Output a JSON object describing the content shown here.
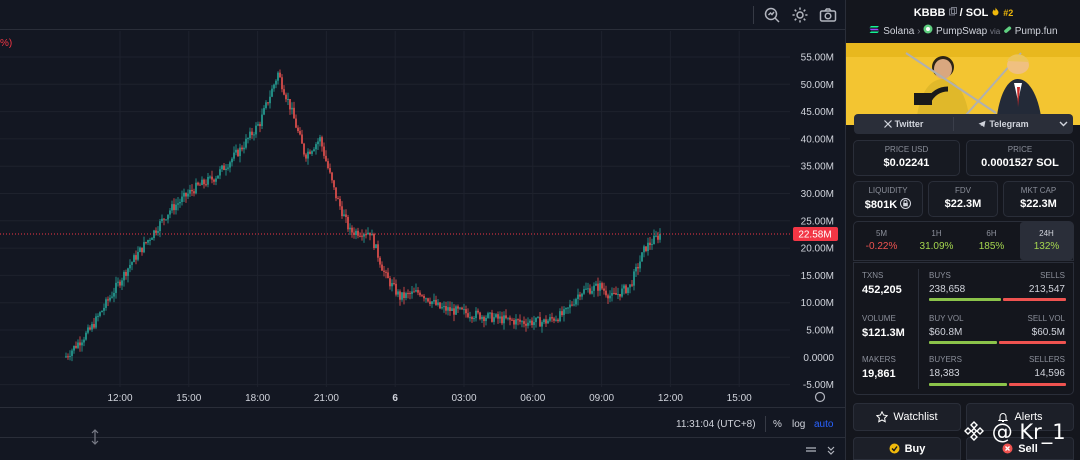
{
  "chart": {
    "pct_label": "%)",
    "current_price": "22.58M",
    "price_ticks": [
      "55.00M",
      "50.00M",
      "45.00M",
      "40.00M",
      "35.00M",
      "30.00M",
      "25.00M",
      "20.00M",
      "15.00M",
      "10.00M",
      "5.00M",
      "0.0000",
      "-5.00M"
    ],
    "time_ticks": [
      "12:00",
      "15:00",
      "18:00",
      "21:00",
      "6",
      "03:00",
      "06:00",
      "09:00",
      "12:00",
      "15:00"
    ],
    "colors": {
      "up": "#26a69a",
      "down": "#ef5350",
      "last": "#f23645"
    }
  },
  "toolbar": {
    "icons": [
      "search-chart-icon",
      "gear-icon",
      "camera-icon"
    ]
  },
  "bottom_bar": {
    "time": "11:31:04 (UTC+8)",
    "percent": "%",
    "log": "log",
    "auto": "auto"
  },
  "token": {
    "symbol": "KBBB",
    "separator": "/",
    "quote": "SOL",
    "rank": "#2",
    "chain": "Solana",
    "dex": "PumpSwap",
    "via": "via",
    "launchpad": "Pump.fun"
  },
  "social": {
    "twitter": "Twitter",
    "telegram": "Telegram"
  },
  "prices": {
    "usd_label": "PRICE USD",
    "usd_value": "$0.02241",
    "sol_label": "PRICE",
    "sol_value": "0.0001527 SOL"
  },
  "metrics": {
    "liquidity_label": "LIQUIDITY",
    "liquidity_value": "$801K",
    "fdv_label": "FDV",
    "fdv_value": "$22.3M",
    "mcap_label": "MKT CAP",
    "mcap_value": "$22.3M"
  },
  "timeframes": [
    {
      "label": "5M",
      "value": "-0.22%"
    },
    {
      "label": "1H",
      "value": "31.09%"
    },
    {
      "label": "6H",
      "value": "185%"
    },
    {
      "label": "24H",
      "value": "132%"
    }
  ],
  "stats": {
    "txns_label": "TXNS",
    "txns_value": "452,205",
    "buys_label": "BUYS",
    "buys_value": "238,658",
    "sells_label": "SELLS",
    "sells_value": "213,547",
    "volume_label": "VOLUME",
    "volume_value": "$121.3M",
    "buyvol_label": "BUY VOL",
    "buyvol_value": "$60.8M",
    "sellvol_label": "SELL VOL",
    "sellvol_value": "$60.5M",
    "makers_label": "MAKERS",
    "makers_value": "19,861",
    "buyers_label": "BUYERS",
    "buyers_value": "18,383",
    "sellers_label": "SELLERS",
    "sellers_value": "14,596"
  },
  "actions": {
    "watchlist": "Watchlist",
    "alerts": "Alerts",
    "buy": "Buy",
    "sell": "Sell"
  },
  "watermark": "@ Kr_1"
}
